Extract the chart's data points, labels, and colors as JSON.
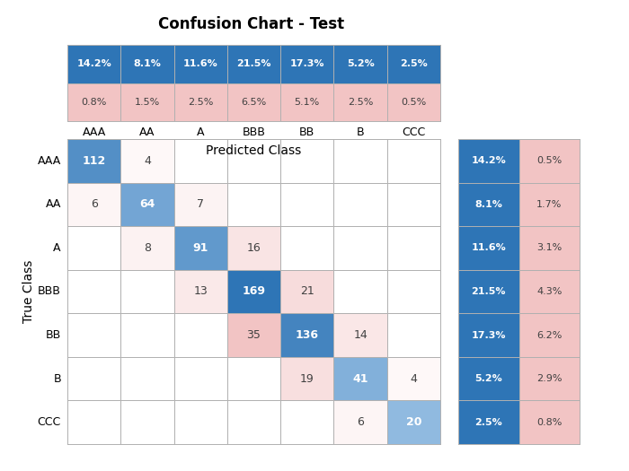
{
  "title": "Confusion Chart - Test",
  "classes": [
    "AAA",
    "AA",
    "A",
    "BBB",
    "BB",
    "B",
    "CCC"
  ],
  "matrix": [
    [
      112,
      4,
      0,
      0,
      0,
      0,
      0
    ],
    [
      6,
      64,
      7,
      0,
      0,
      0,
      0
    ],
    [
      0,
      8,
      91,
      16,
      0,
      0,
      0
    ],
    [
      0,
      0,
      13,
      169,
      21,
      0,
      0
    ],
    [
      0,
      0,
      0,
      35,
      136,
      14,
      0
    ],
    [
      0,
      0,
      0,
      0,
      19,
      41,
      4
    ],
    [
      0,
      0,
      0,
      0,
      0,
      6,
      20
    ]
  ],
  "row_pct_correct": [
    "14.2%",
    "8.1%",
    "11.6%",
    "21.5%",
    "17.3%",
    "5.2%",
    "2.5%"
  ],
  "row_pct_error": [
    "0.5%",
    "1.7%",
    "3.1%",
    "4.3%",
    "6.2%",
    "2.9%",
    "0.8%"
  ],
  "col_pct_correct": [
    "14.2%",
    "8.1%",
    "11.6%",
    "21.5%",
    "17.3%",
    "5.2%",
    "2.5%"
  ],
  "col_pct_error": [
    "0.8%",
    "1.5%",
    "2.5%",
    "6.5%",
    "5.1%",
    "2.5%",
    "0.5%"
  ],
  "blue_dark": "#2E75B6",
  "blue_light": "#9DC3E6",
  "pink_light": "#F2C4C4",
  "white": "#FFFFFF",
  "text_dark": "#404040",
  "xlabel": "Predicted Class",
  "ylabel": "True Class",
  "title_fontsize": 12,
  "label_fontsize": 9,
  "cell_fontsize": 9,
  "pct_fontsize": 8
}
